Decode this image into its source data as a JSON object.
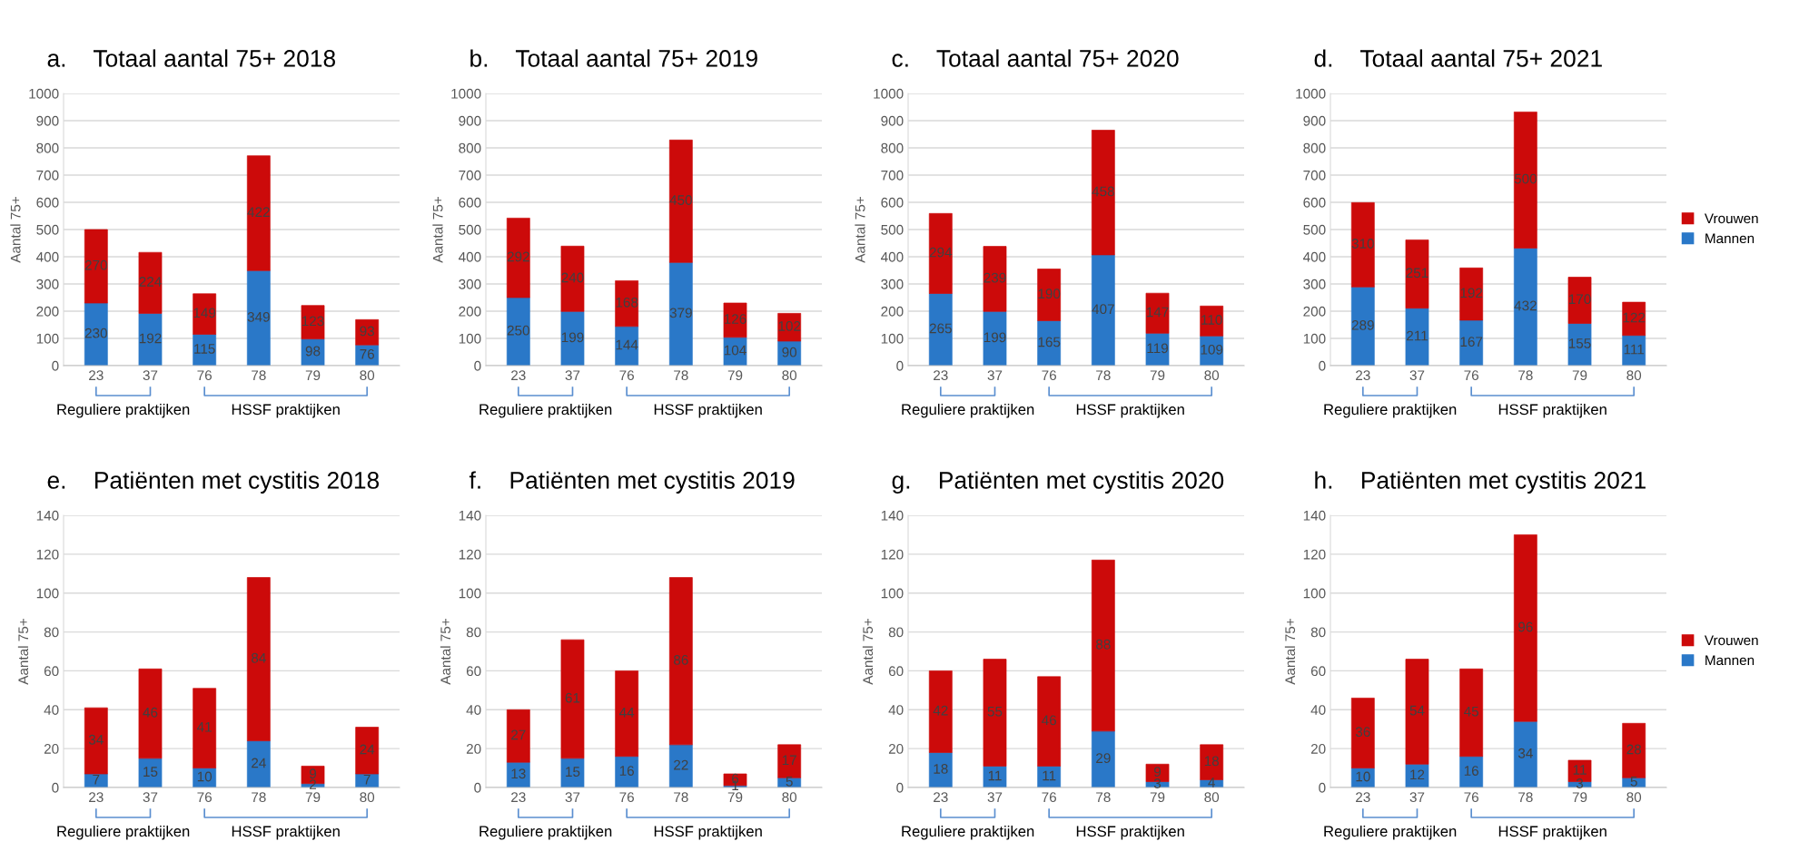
{
  "chart_data": [
    {
      "type": "bar",
      "title": "a.    Totaal aantal 75+ 2018",
      "ylabel": "Aantal 75+",
      "categories": [
        "23",
        "37",
        "76",
        "78",
        "79",
        "80"
      ],
      "stacked": true,
      "data_labels": true,
      "grid": "y",
      "legend": false,
      "ylim": [
        0,
        1000
      ],
      "yticks": [
        0,
        100,
        200,
        300,
        400,
        500,
        600,
        700,
        800,
        900,
        1000
      ],
      "annotations": [
        "Reguliere praktijken",
        "HSSF praktijken"
      ],
      "series": [
        {
          "color": "#2a78c8",
          "values": [
            230,
            192,
            115,
            349,
            98,
            76
          ]
        },
        {
          "color": "#cc0a0a",
          "values": [
            270,
            224,
            149,
            422,
            123,
            93
          ]
        }
      ]
    },
    {
      "type": "bar",
      "title": "b.    Totaal aantal 75+ 2019",
      "ylabel": "Aantal 75+",
      "categories": [
        "23",
        "37",
        "76",
        "78",
        "79",
        "80"
      ],
      "stacked": true,
      "data_labels": true,
      "grid": "y",
      "legend": false,
      "ylim": [
        0,
        1000
      ],
      "yticks": [
        0,
        100,
        200,
        300,
        400,
        500,
        600,
        700,
        800,
        900,
        1000
      ],
      "annotations": [
        "Reguliere praktijken",
        "HSSF praktijken"
      ],
      "series": [
        {
          "color": "#2a78c8",
          "values": [
            250,
            199,
            144,
            379,
            104,
            90
          ]
        },
        {
          "color": "#cc0a0a",
          "values": [
            292,
            240,
            168,
            450,
            126,
            102
          ]
        }
      ]
    },
    {
      "type": "bar",
      "title": "c.    Totaal aantal 75+ 2020",
      "ylabel": "Aantal 75+",
      "categories": [
        "23",
        "37",
        "76",
        "78",
        "79",
        "80"
      ],
      "stacked": true,
      "data_labels": true,
      "grid": "y",
      "legend": false,
      "ylim": [
        0,
        1000
      ],
      "yticks": [
        0,
        100,
        200,
        300,
        400,
        500,
        600,
        700,
        800,
        900,
        1000
      ],
      "annotations": [
        "Reguliere praktijken",
        "HSSF praktijken"
      ],
      "series": [
        {
          "color": "#2a78c8",
          "values": [
            265,
            199,
            165,
            407,
            119,
            109
          ]
        },
        {
          "color": "#cc0a0a",
          "values": [
            294,
            239,
            190,
            458,
            147,
            110
          ]
        }
      ]
    },
    {
      "type": "bar",
      "title": "d.    Totaal aantal 75+ 2021",
      "categories": [
        "23",
        "37",
        "76",
        "78",
        "79",
        "80"
      ],
      "stacked": true,
      "data_labels": true,
      "grid": "y",
      "legend": "right",
      "ylim": [
        0,
        1000
      ],
      "yticks": [
        0,
        100,
        200,
        300,
        400,
        500,
        600,
        700,
        800,
        900,
        1000
      ],
      "annotations": [
        "Reguliere praktijken",
        "HSSF praktijken"
      ],
      "series": [
        {
          "name": "Mannen",
          "color": "#2a78c8",
          "values": [
            289,
            211,
            167,
            432,
            155,
            111
          ]
        },
        {
          "name": "Vrouwen",
          "color": "#cc0a0a",
          "values": [
            310,
            251,
            192,
            500,
            170,
            122
          ]
        }
      ]
    },
    {
      "type": "bar",
      "title": "e.    Patiënten met cystitis 2018",
      "ylabel": "Aantal 75+",
      "categories": [
        "23",
        "37",
        "76",
        "78",
        "79",
        "80"
      ],
      "stacked": true,
      "data_labels": true,
      "grid": "y",
      "legend": false,
      "ylim": [
        0,
        140
      ],
      "yticks": [
        0,
        20,
        40,
        60,
        80,
        100,
        120,
        140
      ],
      "annotations": [
        "Reguliere praktijken",
        "HSSF praktijken"
      ],
      "series": [
        {
          "color": "#2a78c8",
          "values": [
            7,
            15,
            10,
            24,
            2,
            7
          ]
        },
        {
          "color": "#cc0a0a",
          "values": [
            34,
            46,
            41,
            84,
            9,
            24
          ]
        }
      ]
    },
    {
      "type": "bar",
      "title": "f.    Patiënten met cystitis 2019",
      "ylabel": "Aantal 75+",
      "categories": [
        "23",
        "37",
        "76",
        "78",
        "79",
        "80"
      ],
      "stacked": true,
      "data_labels": true,
      "grid": "y",
      "legend": false,
      "ylim": [
        0,
        140
      ],
      "yticks": [
        0,
        20,
        40,
        60,
        80,
        100,
        120,
        140
      ],
      "annotations": [
        "Reguliere praktijken",
        "HSSF praktijken"
      ],
      "series": [
        {
          "color": "#2a78c8",
          "values": [
            13,
            15,
            16,
            22,
            1,
            5
          ]
        },
        {
          "color": "#cc0a0a",
          "values": [
            27,
            61,
            44,
            86,
            6,
            17
          ]
        }
      ]
    },
    {
      "type": "bar",
      "title": "g.    Patiënten met cystitis 2020",
      "ylabel": "Aantal 75+",
      "categories": [
        "23",
        "37",
        "76",
        "78",
        "79",
        "80"
      ],
      "stacked": true,
      "data_labels": true,
      "grid": "y",
      "legend": false,
      "ylim": [
        0,
        140
      ],
      "yticks": [
        0,
        20,
        40,
        60,
        80,
        100,
        120,
        140
      ],
      "annotations": [
        "Reguliere praktijken",
        "HSSF praktijken"
      ],
      "series": [
        {
          "color": "#2a78c8",
          "values": [
            18,
            11,
            11,
            29,
            3,
            4
          ]
        },
        {
          "color": "#cc0a0a",
          "values": [
            42,
            55,
            46,
            88,
            9,
            18
          ]
        }
      ]
    },
    {
      "type": "bar",
      "title": "h.    Patiënten met cystitis 2021",
      "ylabel": "Aantal 75+",
      "categories": [
        "23",
        "37",
        "76",
        "78",
        "79",
        "80"
      ],
      "stacked": true,
      "data_labels": true,
      "grid": "y",
      "legend": "right",
      "ylim": [
        0,
        140
      ],
      "yticks": [
        0,
        20,
        40,
        60,
        80,
        100,
        120,
        140
      ],
      "annotations": [
        "Reguliere praktijken",
        "HSSF praktijken"
      ],
      "series": [
        {
          "name": "Mannen",
          "color": "#2a78c8",
          "values": [
            10,
            12,
            16,
            34,
            3,
            5
          ]
        },
        {
          "name": "Vrouwen",
          "color": "#cc0a0a",
          "values": [
            36,
            54,
            45,
            96,
            11,
            28
          ]
        }
      ]
    }
  ]
}
